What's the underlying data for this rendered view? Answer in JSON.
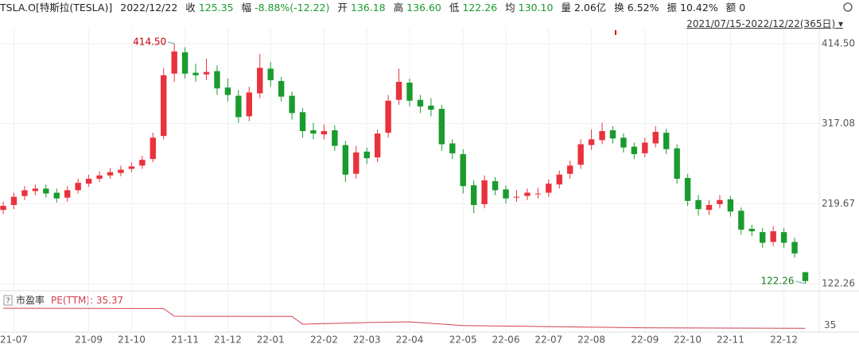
{
  "header": {
    "symbol": "TSLA.O[特斯拉(TESLA)]",
    "date": "2022/12/22",
    "items": [
      {
        "label": "收",
        "value": "125.35",
        "color": "#1a9b2e"
      },
      {
        "label": "幅",
        "value": "-8.88%(-12.22)",
        "color": "#1a9b2e"
      },
      {
        "label": "开",
        "value": "136.18",
        "color": "#1a9b2e"
      },
      {
        "label": "高",
        "value": "136.60",
        "color": "#1a9b2e"
      },
      {
        "label": "低",
        "value": "122.26",
        "color": "#1a9b2e"
      },
      {
        "label": "均",
        "value": "130.10",
        "color": "#1a9b2e"
      },
      {
        "label": "量",
        "value": "2.06亿",
        "color": "#222"
      },
      {
        "label": "换",
        "value": "6.52%",
        "color": "#222"
      },
      {
        "label": "振",
        "value": "10.42%",
        "color": "#222"
      },
      {
        "label": "额",
        "value": "0",
        "color": "#222"
      }
    ],
    "range": "2021/07/15-2022/12/22(365日)"
  },
  "chart_data": [
    {
      "type": "candlestick",
      "up_color": "#e8323c",
      "down_color": "#1a9b2e",
      "xlim": [
        -0.3,
        76.3
      ],
      "ylim": [
        114.5,
        432.8
      ],
      "yticks": [
        {
          "value": 414.5,
          "label": "414.50"
        },
        {
          "value": 317.08,
          "label": "317.08"
        },
        {
          "value": 219.67,
          "label": "219.67"
        },
        {
          "value": 122.26,
          "label": "122.26"
        }
      ],
      "xticks": [
        {
          "value": 1,
          "label": "21-07"
        },
        {
          "value": 8,
          "label": "21-09"
        },
        {
          "value": 12,
          "label": "21-10"
        },
        {
          "value": 17,
          "label": "21-11"
        },
        {
          "value": 21,
          "label": "21-12"
        },
        {
          "value": 25,
          "label": "22-01"
        },
        {
          "value": 30,
          "label": "22-02"
        },
        {
          "value": 34,
          "label": "22-03"
        },
        {
          "value": 38,
          "label": "22-04"
        },
        {
          "value": 43,
          "label": "22-05"
        },
        {
          "value": 47,
          "label": "22-06"
        },
        {
          "value": 51,
          "label": "22-07"
        },
        {
          "value": 55,
          "label": "22-08"
        },
        {
          "value": 60,
          "label": "22-09"
        },
        {
          "value": 64,
          "label": "22-10"
        },
        {
          "value": 68,
          "label": "22-11"
        },
        {
          "value": 73,
          "label": "22-12"
        }
      ],
      "grid": true,
      "open": [
        212,
        218,
        229,
        235,
        238,
        233,
        227,
        236,
        244,
        250,
        254,
        257,
        262,
        266,
        274,
        302,
        378,
        404,
        379,
        377,
        381,
        361,
        351,
        326,
        354,
        384,
        369,
        351,
        331,
        309,
        304,
        309,
        291,
        256,
        283,
        276,
        306,
        346,
        367,
        346,
        339,
        335,
        293,
        280,
        242,
        219,
        247,
        237,
        227,
        229,
        232,
        233,
        243,
        256,
        267,
        291,
        297,
        309,
        300,
        289,
        281,
        293,
        306,
        287,
        251,
        224,
        212,
        219,
        225,
        211,
        189,
        185,
        173,
        185,
        173,
        136.18
      ],
      "high": [
        222,
        233,
        241,
        243,
        243,
        238,
        241,
        250,
        255,
        259,
        263,
        266,
        270,
        278,
        306,
        385,
        414.5,
        410,
        390,
        396,
        388,
        372,
        358,
        362,
        402,
        392,
        374,
        356,
        336,
        318,
        316,
        315,
        296,
        290,
        288,
        310,
        352,
        384,
        372,
        352,
        348,
        340,
        298,
        286,
        248,
        254,
        252,
        242,
        236,
        238,
        239,
        249,
        260,
        272,
        298,
        310,
        318,
        314,
        305,
        294,
        300,
        314,
        311,
        292,
        256,
        230,
        224,
        230,
        229,
        215,
        194,
        190,
        192,
        190,
        178,
        136.6
      ],
      "low": [
        207,
        213,
        224,
        230,
        227,
        221,
        222,
        232,
        240,
        246,
        250,
        253,
        258,
        262,
        270,
        298,
        368,
        372,
        368,
        370,
        352,
        344,
        318,
        320,
        348,
        362,
        344,
        322,
        300,
        298,
        298,
        284,
        246,
        250,
        268,
        270,
        300,
        340,
        338,
        330,
        326,
        284,
        274,
        232,
        208,
        214,
        230,
        220,
        222,
        224,
        226,
        228,
        238,
        250,
        262,
        285,
        292,
        293,
        282,
        274,
        276,
        288,
        280,
        244,
        217,
        205,
        206,
        214,
        204,
        182,
        180,
        166,
        168,
        166,
        154,
        122.26
      ],
      "close": [
        217,
        228,
        236,
        238,
        232,
        226,
        236,
        245,
        250,
        254,
        258,
        261,
        265,
        273,
        300,
        376,
        405,
        378,
        376,
        380,
        360,
        352,
        325,
        355,
        385,
        370,
        350,
        330,
        308,
        305,
        308,
        290,
        255,
        282,
        275,
        305,
        345,
        368,
        345,
        338,
        334,
        292,
        281,
        241,
        218,
        248,
        236,
        226,
        228,
        233,
        232,
        244,
        255,
        266,
        292,
        298,
        308,
        299,
        288,
        280,
        294,
        307,
        286,
        250,
        223,
        213,
        218,
        224,
        210,
        188,
        186,
        172,
        186,
        172,
        159,
        125.35
      ],
      "annotations": [
        {
          "index": 16,
          "value": 414.5,
          "label": "414.50",
          "color": "#c8000a"
        },
        {
          "index": 75,
          "value": 122.26,
          "label": "122.26",
          "color": "#1a7a1a"
        }
      ]
    },
    {
      "type": "line",
      "title": "市盈率",
      "subtitle": "PE(TTM): 35.37",
      "color": "#d04050",
      "xlim": [
        -0.3,
        76.3
      ],
      "ylim": [
        0,
        300
      ],
      "yticks": [
        35
      ],
      "x": [
        0,
        15,
        16,
        27,
        28,
        34,
        38,
        43,
        60,
        75
      ],
      "values": [
        225,
        222,
        150,
        148,
        75,
        90,
        97,
        62,
        40,
        35.37
      ]
    }
  ]
}
